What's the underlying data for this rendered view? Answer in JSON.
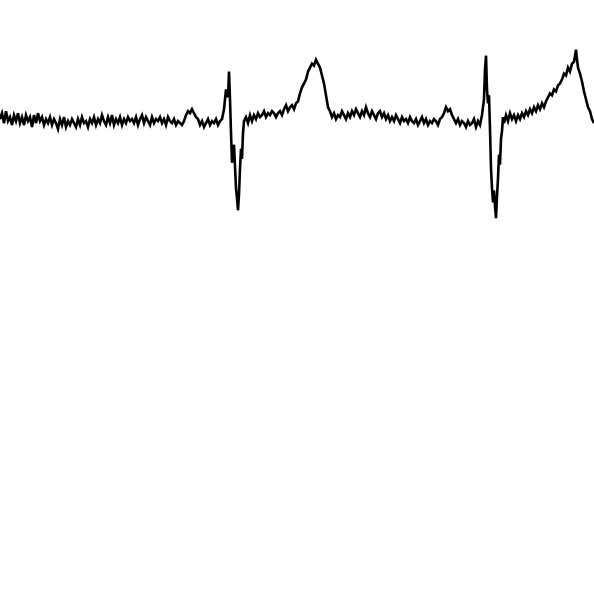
{
  "chart_data": {
    "type": "line",
    "title": "",
    "xlabel": "",
    "ylabel": "",
    "grid": false,
    "legend": "none",
    "xlim": [
      0,
      594
    ],
    "ylim": [
      -5.5,
      4.5
    ],
    "series": [
      {
        "color": "#000000",
        "points": [
          [
            0,
            0.0
          ],
          [
            2,
            0.3
          ],
          [
            4,
            -0.2
          ],
          [
            6,
            0.4
          ],
          [
            8,
            -0.1
          ],
          [
            10,
            0.1
          ],
          [
            12,
            -0.3
          ],
          [
            14,
            0.2
          ],
          [
            16,
            -0.1
          ],
          [
            18,
            0.3
          ],
          [
            20,
            -0.2
          ],
          [
            22,
            0.1
          ],
          [
            24,
            -0.3
          ],
          [
            26,
            0.2
          ],
          [
            28,
            -0.1
          ],
          [
            30,
            0.1
          ],
          [
            32,
            -0.4
          ],
          [
            34,
            0.2
          ],
          [
            36,
            -0.2
          ],
          [
            38,
            0.3
          ],
          [
            40,
            -0.1
          ],
          [
            42,
            0.1
          ],
          [
            44,
            -0.3
          ],
          [
            46,
            0.0
          ],
          [
            48,
            -0.2
          ],
          [
            50,
            0.1
          ],
          [
            52,
            -0.3
          ],
          [
            54,
            0.0
          ],
          [
            56,
            -0.2
          ],
          [
            58,
            -0.5
          ],
          [
            60,
            0.0
          ],
          [
            62,
            -0.3
          ],
          [
            64,
            0.1
          ],
          [
            66,
            -0.4
          ],
          [
            68,
            -0.1
          ],
          [
            70,
            -0.3
          ],
          [
            72,
            0.0
          ],
          [
            74,
            -0.2
          ],
          [
            76,
            -0.4
          ],
          [
            78,
            0.0
          ],
          [
            80,
            -0.3
          ],
          [
            82,
            0.1
          ],
          [
            84,
            -0.2
          ],
          [
            86,
            -0.1
          ],
          [
            88,
            -0.4
          ],
          [
            90,
            0.0
          ],
          [
            92,
            -0.2
          ],
          [
            94,
            0.1
          ],
          [
            96,
            -0.3
          ],
          [
            98,
            0.0
          ],
          [
            100,
            -0.2
          ],
          [
            102,
            0.2
          ],
          [
            104,
            -0.1
          ],
          [
            106,
            -0.3
          ],
          [
            108,
            0.1
          ],
          [
            110,
            -0.2
          ],
          [
            112,
            0.2
          ],
          [
            114,
            -0.3
          ],
          [
            116,
            0.0
          ],
          [
            118,
            -0.2
          ],
          [
            120,
            0.1
          ],
          [
            122,
            -0.3
          ],
          [
            124,
            0.0
          ],
          [
            126,
            -0.2
          ],
          [
            128,
            0.1
          ],
          [
            130,
            -0.1
          ],
          [
            132,
            0.0
          ],
          [
            134,
            -0.2
          ],
          [
            136,
            0.1
          ],
          [
            138,
            -0.3
          ],
          [
            140,
            0.0
          ],
          [
            142,
            0.2
          ],
          [
            144,
            -0.2
          ],
          [
            146,
            0.1
          ],
          [
            148,
            -0.1
          ],
          [
            150,
            -0.3
          ],
          [
            152,
            0.1
          ],
          [
            154,
            -0.2
          ],
          [
            156,
            0.0
          ],
          [
            158,
            -0.1
          ],
          [
            160,
            0.1
          ],
          [
            162,
            -0.2
          ],
          [
            164,
            0.0
          ],
          [
            166,
            -0.3
          ],
          [
            168,
            0.1
          ],
          [
            170,
            -0.1
          ],
          [
            172,
            -0.2
          ],
          [
            174,
            0.0
          ],
          [
            176,
            -0.3
          ],
          [
            178,
            -0.1
          ],
          [
            180,
            -0.2
          ],
          [
            182,
            -0.3
          ],
          [
            184,
            -0.1
          ],
          [
            186,
            0.2
          ],
          [
            188,
            0.4
          ],
          [
            190,
            0.3
          ],
          [
            192,
            0.5
          ],
          [
            194,
            0.3
          ],
          [
            196,
            0.1
          ],
          [
            198,
            0.0
          ],
          [
            200,
            -0.3
          ],
          [
            202,
            -0.1
          ],
          [
            204,
            -0.4
          ],
          [
            206,
            -0.2
          ],
          [
            208,
            0.0
          ],
          [
            210,
            -0.3
          ],
          [
            212,
            -0.1
          ],
          [
            214,
            -0.2
          ],
          [
            216,
            0.0
          ],
          [
            218,
            -0.3
          ],
          [
            220,
            -0.1
          ],
          [
            222,
            0.0
          ],
          [
            224,
            0.5
          ],
          [
            226,
            1.5
          ],
          [
            228,
            1.1
          ],
          [
            229,
            2.4
          ],
          [
            230,
            1.0
          ],
          [
            231,
            -0.7
          ],
          [
            232,
            -2.2
          ],
          [
            234,
            -1.3
          ],
          [
            236,
            -3.5
          ],
          [
            237,
            -4.0
          ],
          [
            238,
            -4.6
          ],
          [
            239,
            -3.8
          ],
          [
            240,
            -2.5
          ],
          [
            241,
            -1.5
          ],
          [
            242,
            -2.0
          ],
          [
            243,
            -0.7
          ],
          [
            244,
            -0.1
          ],
          [
            246,
            0.1
          ],
          [
            248,
            -0.2
          ],
          [
            250,
            0.2
          ],
          [
            252,
            -0.1
          ],
          [
            254,
            0.2
          ],
          [
            256,
            0.0
          ],
          [
            258,
            0.3
          ],
          [
            260,
            0.1
          ],
          [
            262,
            0.2
          ],
          [
            264,
            0.4
          ],
          [
            266,
            0.1
          ],
          [
            268,
            0.3
          ],
          [
            270,
            0.2
          ],
          [
            272,
            0.4
          ],
          [
            274,
            0.3
          ],
          [
            276,
            0.1
          ],
          [
            278,
            0.3
          ],
          [
            280,
            0.4
          ],
          [
            282,
            0.2
          ],
          [
            284,
            0.5
          ],
          [
            286,
            0.7
          ],
          [
            288,
            0.4
          ],
          [
            290,
            0.6
          ],
          [
            292,
            0.7
          ],
          [
            294,
            0.5
          ],
          [
            296,
            0.8
          ],
          [
            298,
            0.9
          ],
          [
            300,
            1.3
          ],
          [
            302,
            1.6
          ],
          [
            304,
            1.8
          ],
          [
            306,
            2.0
          ],
          [
            308,
            2.4
          ],
          [
            310,
            2.6
          ],
          [
            312,
            2.8
          ],
          [
            314,
            2.7
          ],
          [
            316,
            3.0
          ],
          [
            318,
            2.8
          ],
          [
            320,
            2.6
          ],
          [
            322,
            2.2
          ],
          [
            324,
            1.8
          ],
          [
            326,
            1.2
          ],
          [
            328,
            0.6
          ],
          [
            330,
            0.4
          ],
          [
            332,
            0.1
          ],
          [
            334,
            0.3
          ],
          [
            336,
            0.0
          ],
          [
            338,
            0.2
          ],
          [
            340,
            0.1
          ],
          [
            342,
            0.4
          ],
          [
            344,
            0.2
          ],
          [
            346,
            0.0
          ],
          [
            348,
            0.3
          ],
          [
            350,
            0.1
          ],
          [
            352,
            0.4
          ],
          [
            354,
            0.2
          ],
          [
            356,
            0.5
          ],
          [
            358,
            0.3
          ],
          [
            360,
            0.1
          ],
          [
            362,
            0.4
          ],
          [
            364,
            0.2
          ],
          [
            366,
            0.6
          ],
          [
            368,
            0.3
          ],
          [
            370,
            0.1
          ],
          [
            372,
            0.4
          ],
          [
            374,
            0.2
          ],
          [
            376,
            0.0
          ],
          [
            378,
            0.3
          ],
          [
            380,
            0.4
          ],
          [
            382,
            0.1
          ],
          [
            384,
            0.3
          ],
          [
            386,
            0.0
          ],
          [
            388,
            0.2
          ],
          [
            390,
            -0.1
          ],
          [
            392,
            0.1
          ],
          [
            394,
            -0.1
          ],
          [
            396,
            0.2
          ],
          [
            398,
            0.0
          ],
          [
            400,
            -0.2
          ],
          [
            402,
            0.1
          ],
          [
            404,
            -0.1
          ],
          [
            406,
            0.0
          ],
          [
            408,
            -0.2
          ],
          [
            410,
            0.1
          ],
          [
            412,
            -0.1
          ],
          [
            414,
            -0.2
          ],
          [
            416,
            0.0
          ],
          [
            418,
            -0.3
          ],
          [
            420,
            -0.1
          ],
          [
            422,
            0.1
          ],
          [
            424,
            -0.2
          ],
          [
            426,
            0.0
          ],
          [
            428,
            -0.3
          ],
          [
            430,
            -0.1
          ],
          [
            432,
            -0.2
          ],
          [
            434,
            0.0
          ],
          [
            436,
            -0.1
          ],
          [
            438,
            -0.3
          ],
          [
            440,
            0.0
          ],
          [
            442,
            0.1
          ],
          [
            444,
            0.3
          ],
          [
            446,
            0.6
          ],
          [
            448,
            0.4
          ],
          [
            450,
            0.5
          ],
          [
            452,
            0.2
          ],
          [
            454,
            0.0
          ],
          [
            456,
            -0.2
          ],
          [
            458,
            0.0
          ],
          [
            460,
            -0.3
          ],
          [
            462,
            -0.1
          ],
          [
            464,
            -0.2
          ],
          [
            466,
            -0.4
          ],
          [
            468,
            -0.1
          ],
          [
            470,
            -0.3
          ],
          [
            472,
            -0.2
          ],
          [
            474,
            0.0
          ],
          [
            476,
            -0.4
          ],
          [
            478,
            -0.1
          ],
          [
            480,
            -0.3
          ],
          [
            482,
            0.2
          ],
          [
            484,
            1.0
          ],
          [
            485,
            2.5
          ],
          [
            486,
            3.2
          ],
          [
            487,
            1.5
          ],
          [
            488,
            0.8
          ],
          [
            489,
            1.2
          ],
          [
            490,
            -0.5
          ],
          [
            491,
            -2.5
          ],
          [
            492,
            -3.5
          ],
          [
            493,
            -4.2
          ],
          [
            494,
            -3.6
          ],
          [
            495,
            -4.4
          ],
          [
            496,
            -5.0
          ],
          [
            497,
            -3.9
          ],
          [
            498,
            -3.0
          ],
          [
            499,
            -1.8
          ],
          [
            500,
            -2.3
          ],
          [
            501,
            -1.0
          ],
          [
            502,
            -0.6
          ],
          [
            503,
            0.1
          ],
          [
            504,
            -0.2
          ],
          [
            506,
            0.2
          ],
          [
            508,
            -0.1
          ],
          [
            510,
            0.3
          ],
          [
            512,
            0.0
          ],
          [
            514,
            0.2
          ],
          [
            516,
            -0.1
          ],
          [
            518,
            0.2
          ],
          [
            520,
            0.0
          ],
          [
            522,
            0.3
          ],
          [
            524,
            0.1
          ],
          [
            526,
            0.4
          ],
          [
            528,
            0.2
          ],
          [
            530,
            0.5
          ],
          [
            532,
            0.3
          ],
          [
            534,
            0.6
          ],
          [
            536,
            0.4
          ],
          [
            538,
            0.7
          ],
          [
            540,
            0.5
          ],
          [
            542,
            0.8
          ],
          [
            544,
            0.6
          ],
          [
            546,
            0.9
          ],
          [
            548,
            1.1
          ],
          [
            550,
            1.3
          ],
          [
            552,
            1.2
          ],
          [
            554,
            1.5
          ],
          [
            556,
            1.4
          ],
          [
            558,
            1.7
          ],
          [
            560,
            1.8
          ],
          [
            562,
            2.0
          ],
          [
            564,
            2.3
          ],
          [
            566,
            2.2
          ],
          [
            568,
            2.6
          ],
          [
            570,
            2.4
          ],
          [
            572,
            2.8
          ],
          [
            574,
            2.9
          ],
          [
            576,
            3.5
          ],
          [
            577,
            3.0
          ],
          [
            578,
            2.6
          ],
          [
            580,
            2.3
          ],
          [
            582,
            1.9
          ],
          [
            584,
            1.4
          ],
          [
            586,
            1.0
          ],
          [
            588,
            0.6
          ],
          [
            590,
            0.4
          ],
          [
            592,
            0.0
          ],
          [
            594,
            -0.2
          ]
        ]
      }
    ]
  }
}
